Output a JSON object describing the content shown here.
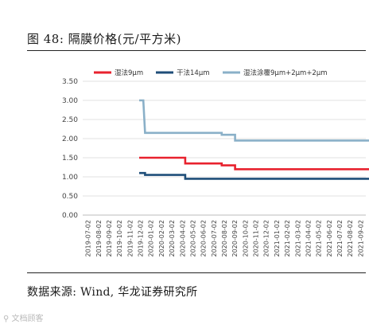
{
  "figure": {
    "title": "图 48: 隔膜价格(元/平方米)",
    "source": "数据来源: Wind, 华龙证券研究所",
    "watermark": "⚲ 文档顾客"
  },
  "chart_data": {
    "type": "line",
    "title": "",
    "xlabel": "",
    "ylabel": "",
    "ylim": [
      0,
      3.5
    ],
    "yticks": [
      0.0,
      0.5,
      1.0,
      1.5,
      2.0,
      2.5,
      3.0,
      3.5
    ],
    "ytick_labels": [
      "0.00",
      "0.50",
      "1.00",
      "1.50",
      "2.00",
      "2.50",
      "3.00",
      "3.50"
    ],
    "grid": true,
    "legend_position": "top",
    "x_tick_labels": [
      "2019-07-02",
      "2019-08-02",
      "2019-09-02",
      "2019-10-02",
      "2019-11-02",
      "2019-12-02",
      "2020-01-02",
      "2020-02-02",
      "2020-03-02",
      "2020-04-02",
      "2020-05-02",
      "2020-06-02",
      "2020-07-02",
      "2020-08-02",
      "2020-09-02",
      "2020-10-02",
      "2020-11-02",
      "2020-12-02",
      "2021-01-02",
      "2021-02-02",
      "2021-03-02",
      "2021-04-02",
      "2021-05-02",
      "2021-06-02",
      "2021-07-02",
      "2021-08-02",
      "2021-09-02"
    ],
    "series": [
      {
        "name": "湿法9μm",
        "color": "#e8222e",
        "points": [
          {
            "x": "2019-11-28",
            "y": 1.5
          },
          {
            "x": "2020-04-10",
            "y": 1.5
          },
          {
            "x": "2020-04-10",
            "y": 1.35
          },
          {
            "x": "2020-07-25",
            "y": 1.35
          },
          {
            "x": "2020-07-25",
            "y": 1.3
          },
          {
            "x": "2020-09-02",
            "y": 1.3
          },
          {
            "x": "2020-09-02",
            "y": 1.2
          },
          {
            "x": "2021-09-30",
            "y": 1.2
          }
        ]
      },
      {
        "name": "干法14μm",
        "color": "#1f4e79",
        "points": [
          {
            "x": "2019-11-28",
            "y": 1.1
          },
          {
            "x": "2019-12-15",
            "y": 1.1
          },
          {
            "x": "2019-12-15",
            "y": 1.05
          },
          {
            "x": "2020-04-10",
            "y": 1.05
          },
          {
            "x": "2020-04-10",
            "y": 0.95
          },
          {
            "x": "2021-09-30",
            "y": 0.95
          }
        ]
      },
      {
        "name": "湿法涂覆9μm+2μm+2μm",
        "color": "#8ab0c8",
        "points": [
          {
            "x": "2019-11-28",
            "y": 3.0
          },
          {
            "x": "2019-12-10",
            "y": 3.0
          },
          {
            "x": "2019-12-15",
            "y": 2.15
          },
          {
            "x": "2020-07-25",
            "y": 2.15
          },
          {
            "x": "2020-07-25",
            "y": 2.1
          },
          {
            "x": "2020-09-02",
            "y": 2.1
          },
          {
            "x": "2020-09-02",
            "y": 1.95
          },
          {
            "x": "2021-09-30",
            "y": 1.95
          }
        ]
      }
    ]
  }
}
